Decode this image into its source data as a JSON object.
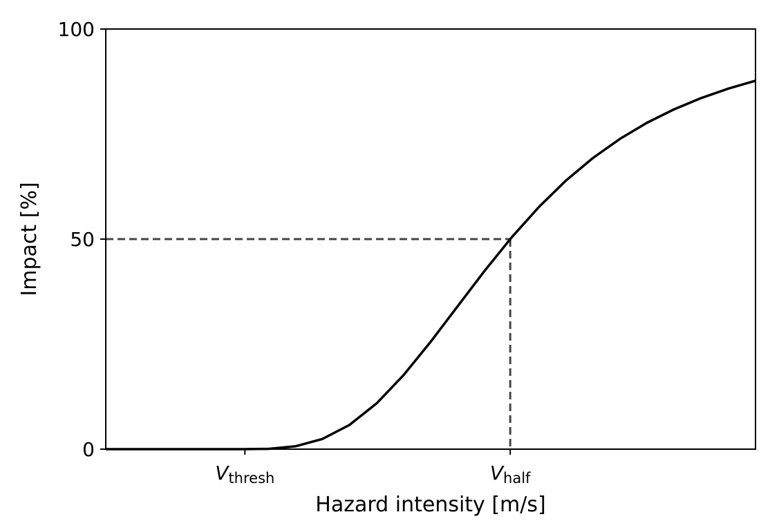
{
  "chart_data": {
    "type": "line",
    "title": "",
    "xlabel": "Hazard intensity [m/s]",
    "ylabel": "Impact [%]",
    "xlim": [
      0,
      120
    ],
    "ylim": [
      0,
      100
    ],
    "grid": false,
    "yticks": [
      {
        "value": 0,
        "label": "0"
      },
      {
        "value": 50,
        "label": "50"
      },
      {
        "value": 100,
        "label": "100"
      }
    ],
    "xticks": [
      {
        "value": 25.7,
        "main": "V",
        "sub": "thresh"
      },
      {
        "value": 74.7,
        "main": "V",
        "sub": "half"
      }
    ],
    "reference_lines": {
      "x": 74.7,
      "y": 50,
      "style": "dashed",
      "color": "#444444"
    },
    "series": [
      {
        "color": "#000000",
        "x": [
          0,
          5,
          10,
          15,
          20,
          25,
          30,
          35,
          40,
          45,
          50,
          55,
          60,
          65,
          70,
          75,
          80,
          85,
          90,
          95,
          100,
          105,
          110,
          115,
          120
        ],
        "y": [
          0,
          0,
          0,
          0,
          0,
          0,
          0.07,
          0.68,
          2.42,
          5.76,
          10.87,
          17.62,
          25.54,
          34.03,
          42.49,
          50.46,
          57.64,
          63.93,
          69.32,
          73.88,
          77.71,
          80.91,
          83.58,
          85.82,
          87.7
        ]
      }
    ]
  }
}
